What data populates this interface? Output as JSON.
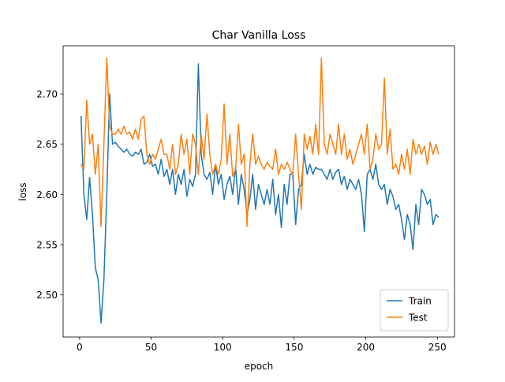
{
  "chart_data": {
    "type": "line",
    "title": "Char Vanilla Loss",
    "x_label": "epoch",
    "y_label": "loss",
    "x": [
      1,
      3,
      5,
      7,
      9,
      11,
      13,
      15,
      17,
      19,
      21,
      23,
      25,
      27,
      29,
      31,
      33,
      35,
      37,
      39,
      41,
      43,
      45,
      47,
      49,
      51,
      53,
      55,
      57,
      59,
      61,
      63,
      65,
      67,
      69,
      71,
      73,
      75,
      77,
      79,
      81,
      83,
      85,
      87,
      89,
      91,
      93,
      95,
      97,
      99,
      101,
      103,
      105,
      107,
      109,
      111,
      113,
      115,
      117,
      119,
      121,
      123,
      125,
      127,
      129,
      131,
      133,
      135,
      137,
      139,
      141,
      143,
      145,
      147,
      149,
      151,
      153,
      155,
      157,
      159,
      161,
      163,
      165,
      167,
      169,
      171,
      173,
      175,
      177,
      179,
      181,
      183,
      185,
      187,
      189,
      191,
      193,
      195,
      197,
      199,
      201,
      203,
      205,
      207,
      209,
      211,
      213,
      215,
      217,
      219,
      221,
      223,
      225,
      227,
      229,
      231,
      233,
      235,
      237,
      239,
      241,
      243,
      245,
      247,
      249,
      251
    ],
    "series": [
      {
        "name": "Train",
        "color": "#1f77b4",
        "values": [
          2.678,
          2.6,
          2.575,
          2.617,
          2.58,
          2.527,
          2.515,
          2.472,
          2.515,
          2.6,
          2.7,
          2.65,
          2.652,
          2.648,
          2.645,
          2.642,
          2.645,
          2.64,
          2.638,
          2.642,
          2.64,
          2.645,
          2.63,
          2.632,
          2.64,
          2.628,
          2.63,
          2.62,
          2.635,
          2.618,
          2.625,
          2.61,
          2.625,
          2.6,
          2.62,
          2.61,
          2.625,
          2.598,
          2.615,
          2.608,
          2.62,
          2.73,
          2.64,
          2.62,
          2.615,
          2.622,
          2.6,
          2.63,
          2.61,
          2.62,
          2.595,
          2.61,
          2.618,
          2.6,
          2.628,
          2.59,
          2.62,
          2.605,
          2.58,
          2.595,
          2.62,
          2.585,
          2.61,
          2.6,
          2.59,
          2.605,
          2.59,
          2.615,
          2.58,
          2.6,
          2.567,
          2.61,
          2.59,
          2.62,
          2.62,
          2.57,
          2.605,
          2.61,
          2.64,
          2.62,
          2.63,
          2.62,
          2.627,
          2.625,
          2.625,
          2.62,
          2.615,
          2.625,
          2.615,
          2.622,
          2.625,
          2.61,
          2.618,
          2.605,
          2.615,
          2.61,
          2.605,
          2.615,
          2.6,
          2.563,
          2.62,
          2.625,
          2.615,
          2.63,
          2.61,
          2.605,
          2.61,
          2.59,
          2.605,
          2.598,
          2.585,
          2.59,
          2.575,
          2.555,
          2.58,
          2.57,
          2.545,
          2.59,
          2.57,
          2.605,
          2.6,
          2.59,
          2.595,
          2.57,
          2.58,
          2.577
        ]
      },
      {
        "name": "Test",
        "color": "#ff7f0e",
        "values": [
          2.63,
          2.625,
          2.694,
          2.65,
          2.66,
          2.62,
          2.65,
          2.568,
          2.65,
          2.736,
          2.668,
          2.66,
          2.66,
          2.665,
          2.66,
          2.668,
          2.66,
          2.662,
          2.655,
          2.665,
          2.655,
          2.675,
          2.678,
          2.64,
          2.63,
          2.64,
          2.635,
          2.645,
          2.655,
          2.64,
          2.64,
          2.625,
          2.65,
          2.62,
          2.63,
          2.66,
          2.64,
          2.655,
          2.62,
          2.66,
          2.65,
          2.62,
          2.66,
          2.635,
          2.68,
          2.64,
          2.62,
          2.63,
          2.62,
          2.635,
          2.69,
          2.63,
          2.66,
          2.618,
          2.625,
          2.67,
          2.63,
          2.64,
          2.568,
          2.63,
          2.66,
          2.63,
          2.638,
          2.63,
          2.625,
          2.632,
          2.628,
          2.625,
          2.645,
          2.62,
          2.63,
          2.625,
          2.632,
          2.625,
          2.62,
          2.66,
          2.62,
          2.585,
          2.66,
          2.645,
          2.658,
          2.64,
          2.67,
          2.64,
          2.736,
          2.65,
          2.64,
          2.66,
          2.65,
          2.64,
          2.67,
          2.64,
          2.66,
          2.635,
          2.645,
          2.63,
          2.64,
          2.65,
          2.66,
          2.64,
          2.67,
          2.625,
          2.635,
          2.66,
          2.645,
          2.65,
          2.716,
          2.64,
          2.665,
          2.625,
          2.63,
          2.62,
          2.64,
          2.625,
          2.645,
          2.62,
          2.655,
          2.64,
          2.65,
          2.64,
          2.648,
          2.63,
          2.652,
          2.64,
          2.65,
          2.64
        ]
      }
    ],
    "xlim": [
      -11.5,
      262
    ],
    "ylim": [
      2.458,
      2.748
    ],
    "xticks": [
      0,
      50,
      100,
      150,
      200,
      250
    ],
    "yticks": [
      {
        "value": 2.5,
        "label": "2.50"
      },
      2.55,
      {
        "value": 2.6,
        "label": "2.60"
      },
      2.65,
      {
        "value": 2.7,
        "label": "2.70"
      }
    ],
    "legend": "lower right"
  }
}
